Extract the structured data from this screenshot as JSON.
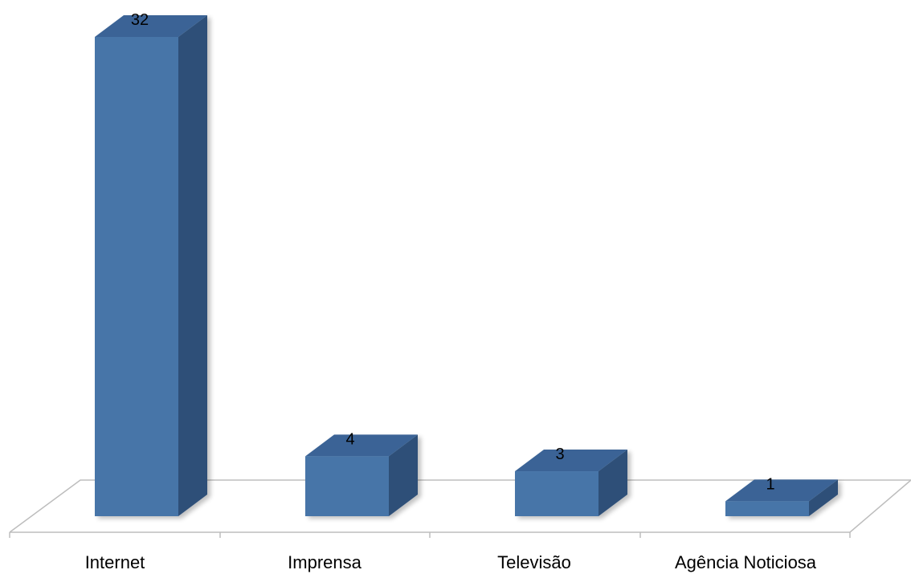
{
  "chart_data": {
    "type": "bar",
    "categories": [
      "Internet",
      "Imprensa",
      "Televisão",
      "Agência Noticiosa"
    ],
    "values": [
      32,
      4,
      3,
      1
    ],
    "data_labels": [
      "32",
      "4",
      "3",
      "1"
    ],
    "style": "3d-column",
    "grid": false,
    "legend": "none",
    "colors": {
      "bar_front": "#4674A8",
      "bar_side": "#2E5078",
      "bar_top": "#3A6496",
      "floor_line": "#BDBDBD",
      "text": "#000000"
    }
  }
}
